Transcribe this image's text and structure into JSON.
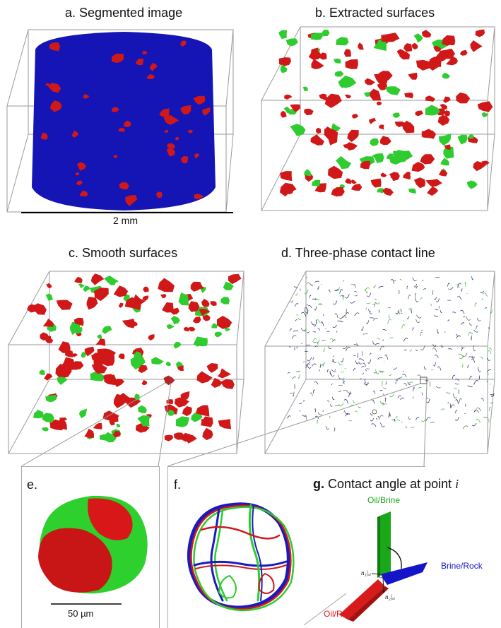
{
  "panels": {
    "a": {
      "title": "a. Segmented image",
      "scale_label": "2 mm"
    },
    "b": {
      "title": "b. Extracted surfaces"
    },
    "c": {
      "title": "c. Smooth surfaces"
    },
    "d": {
      "title": "d. Three-phase contact line"
    },
    "e": {
      "label": "e.",
      "scale_label": "50 µm"
    },
    "f": {
      "label": "f."
    },
    "g": {
      "label_bold": "g.",
      "label_text": "Contact angle at point",
      "label_var": "i",
      "oil_brine": "Oil/Brine",
      "brine_rock": "Brine/Rock",
      "oil_rock": "Oil/Rock",
      "normal_1": "n₁|ₓᵢ",
      "normal_2": "n₂|ₓᵢ"
    }
  },
  "colors": {
    "blue": "#1010b0",
    "red": "#d01818",
    "green": "#2ecc2e",
    "box": "#9a9a9a"
  }
}
